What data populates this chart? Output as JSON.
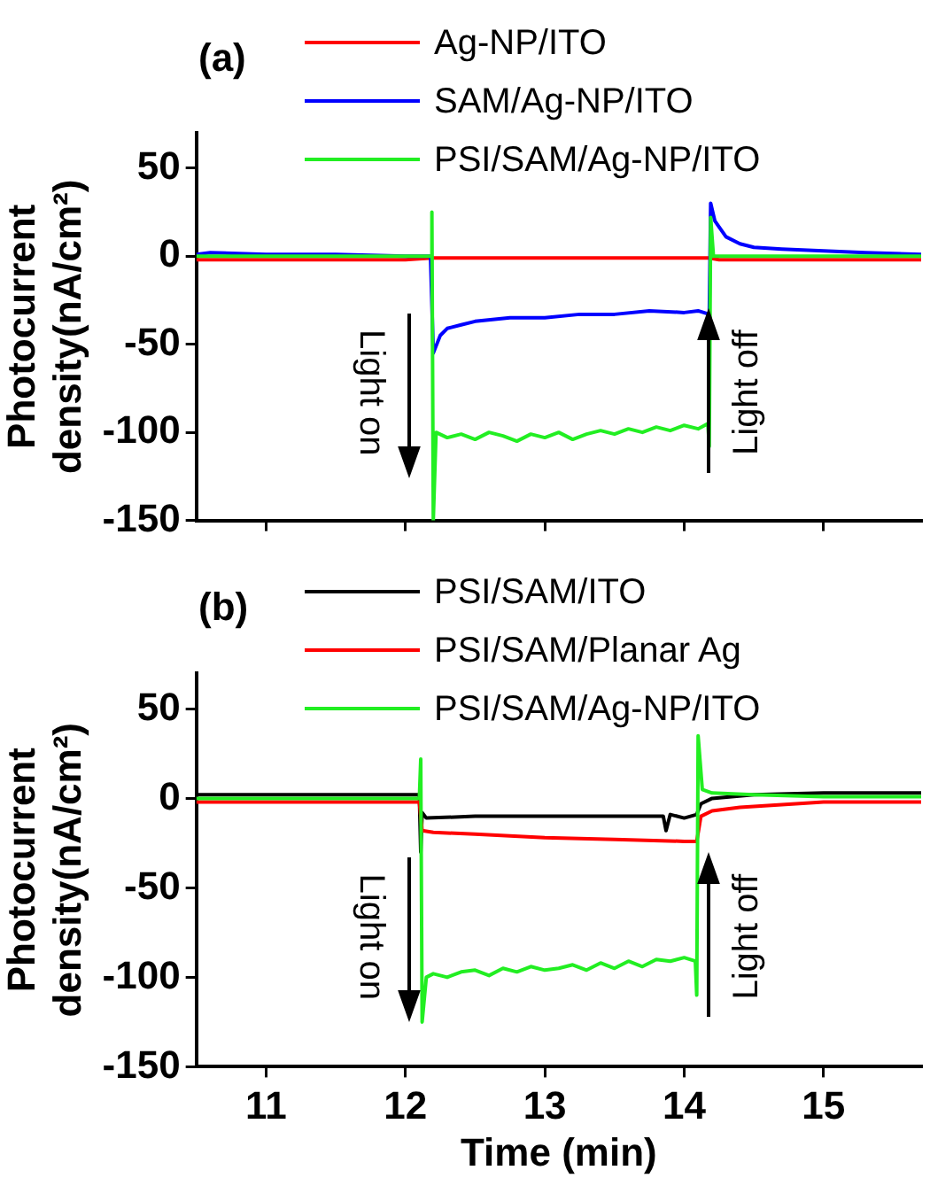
{
  "chart_data": [
    {
      "type": "line",
      "title": "(a)",
      "ylabel": "Photocurrent density(nA/cm²)",
      "xlim": [
        10.5,
        15.7
      ],
      "xticks": [
        11,
        12,
        13,
        14,
        15
      ],
      "ylim": [
        -150,
        70
      ],
      "yticks": [
        -150,
        -100,
        -50,
        0,
        50
      ],
      "tick_labels": "y",
      "legend": "top",
      "annotations": [
        "Light on",
        "Light off"
      ],
      "series": [
        {
          "name": "Ag-NP/ITO",
          "color": "#ff0000",
          "x": [
            10.5,
            11,
            11.5,
            12,
            12.19,
            12.25,
            12.5,
            13,
            13.5,
            14,
            14.18,
            14.25,
            14.5,
            15,
            15.5,
            15.7
          ],
          "values": [
            -2,
            -2,
            -2,
            -2,
            -1,
            -1,
            -1,
            -1,
            -1,
            -1,
            -1,
            -2,
            -2,
            -2,
            -2,
            -2
          ]
        },
        {
          "name": "SAM/Ag-NP/ITO",
          "color": "#0000ff",
          "x": [
            10.5,
            10.6,
            11,
            11.5,
            12,
            12.18,
            12.2,
            12.25,
            12.3,
            12.4,
            12.5,
            12.75,
            13,
            13.25,
            13.5,
            13.75,
            14,
            14.1,
            14.18,
            14.19,
            14.22,
            14.3,
            14.4,
            14.5,
            14.7,
            15,
            15.3,
            15.7
          ],
          "values": [
            1,
            2,
            1,
            1,
            0,
            0,
            -55,
            -45,
            -41,
            -39,
            -37,
            -35,
            -35,
            -33,
            -33,
            -31,
            -32,
            -31,
            -33,
            30,
            20,
            11,
            7,
            5,
            4,
            3,
            2,
            1
          ]
        },
        {
          "name": "PSI/SAM/Ag-NP/ITO",
          "color": "#22ee22",
          "x": [
            10.5,
            11,
            11.5,
            12,
            12.18,
            12.19,
            12.2,
            12.22,
            12.3,
            12.4,
            12.5,
            12.6,
            12.7,
            12.8,
            12.9,
            13,
            13.1,
            13.2,
            13.3,
            13.4,
            13.5,
            13.6,
            13.7,
            13.8,
            13.9,
            14,
            14.1,
            14.17,
            14.18,
            14.19,
            14.21,
            14.3,
            14.5,
            15,
            15.5,
            15.7
          ],
          "values": [
            0,
            0,
            0,
            0,
            0,
            25,
            -150,
            -100,
            -103,
            -101,
            -104,
            -100,
            -102,
            -105,
            -101,
            -103,
            -100,
            -104,
            -101,
            -99,
            -101,
            -98,
            -100,
            -97,
            -99,
            -96,
            -98,
            -95,
            -108,
            22,
            0,
            0,
            0,
            0,
            0,
            0
          ]
        }
      ]
    },
    {
      "type": "line",
      "title": "(b)",
      "xlabel": "Time (min)",
      "ylabel": "Photocurrent density(nA/cm²)",
      "xlim": [
        10.5,
        15.7
      ],
      "xticks": [
        11,
        12,
        13,
        14,
        15
      ],
      "ylim": [
        -150,
        70
      ],
      "yticks": [
        -150,
        -100,
        -50,
        0,
        50
      ],
      "legend": "top",
      "annotations": [
        "Light on",
        "Light off"
      ],
      "series": [
        {
          "name": "PSI/SAM/ITO",
          "color": "#000000",
          "x": [
            10.5,
            11,
            11.5,
            12,
            12.1,
            12.11,
            12.12,
            12.15,
            12.5,
            13,
            13.5,
            13.85,
            13.87,
            13.9,
            14,
            14.09,
            14.12,
            14.2,
            14.5,
            15,
            15.5,
            15.7
          ],
          "values": [
            2,
            2,
            2,
            2,
            2,
            -30,
            -8,
            -11,
            -10,
            -10,
            -10,
            -10,
            -18,
            -9,
            -11,
            -9,
            -3,
            0,
            2,
            3,
            3,
            3
          ]
        },
        {
          "name": "PSI/SAM/Planar Ag",
          "color": "#ff0000",
          "x": [
            10.5,
            11,
            11.5,
            12,
            12.1,
            12.12,
            12.2,
            12.5,
            13,
            13.5,
            14,
            14.09,
            14.12,
            14.2,
            14.4,
            14.6,
            15,
            15.5,
            15.7
          ],
          "values": [
            -2,
            -2,
            -2,
            -2,
            -2,
            -18,
            -19,
            -20,
            -22,
            -23,
            -24,
            -24,
            -10,
            -7,
            -5,
            -4,
            -2,
            -2,
            -2
          ]
        },
        {
          "name": "PSI/SAM/Ag-NP/ITO",
          "color": "#22ee22",
          "x": [
            10.5,
            11,
            11.5,
            12,
            12.1,
            12.11,
            12.12,
            12.15,
            12.2,
            12.3,
            12.4,
            12.5,
            12.6,
            12.7,
            12.8,
            12.9,
            13,
            13.1,
            13.2,
            13.3,
            13.4,
            13.5,
            13.6,
            13.7,
            13.8,
            13.9,
            14,
            14.08,
            14.09,
            14.1,
            14.13,
            14.2,
            14.5,
            15,
            15.5,
            15.7
          ],
          "values": [
            0,
            0,
            0,
            0,
            0,
            22,
            -125,
            -100,
            -98,
            -100,
            -97,
            -96,
            -99,
            -95,
            -97,
            -94,
            -96,
            -95,
            -93,
            -96,
            -92,
            -95,
            -91,
            -94,
            -90,
            -91,
            -89,
            -91,
            -110,
            35,
            5,
            3,
            2,
            1,
            1,
            1
          ]
        }
      ]
    }
  ]
}
